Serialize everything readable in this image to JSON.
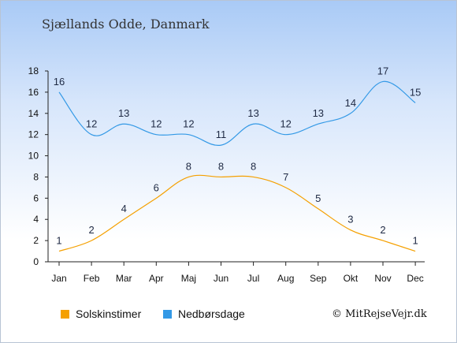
{
  "page": {
    "title": "Sjællands Odde, Danmark",
    "credit": "© MitRejseVejr.dk"
  },
  "colors": {
    "sun": "#f5a000",
    "rain": "#3399e6"
  },
  "chart_data": {
    "type": "line",
    "categories": [
      "Jan",
      "Feb",
      "Mar",
      "Apr",
      "Maj",
      "Jun",
      "Jul",
      "Aug",
      "Sep",
      "Okt",
      "Nov",
      "Dec"
    ],
    "series": [
      {
        "name": "Solskinstimer",
        "values": [
          1,
          2,
          4,
          6,
          8,
          8,
          8,
          7,
          5,
          3,
          2,
          1
        ]
      },
      {
        "name": "Nedbørsdage",
        "values": [
          16,
          12,
          13,
          12,
          12,
          11,
          13,
          12,
          13,
          14,
          17,
          15
        ]
      }
    ],
    "ylim": [
      0,
      18
    ],
    "yticks": [
      0,
      2,
      4,
      6,
      8,
      10,
      12,
      14,
      16,
      18
    ],
    "legend_position": "bottom"
  }
}
